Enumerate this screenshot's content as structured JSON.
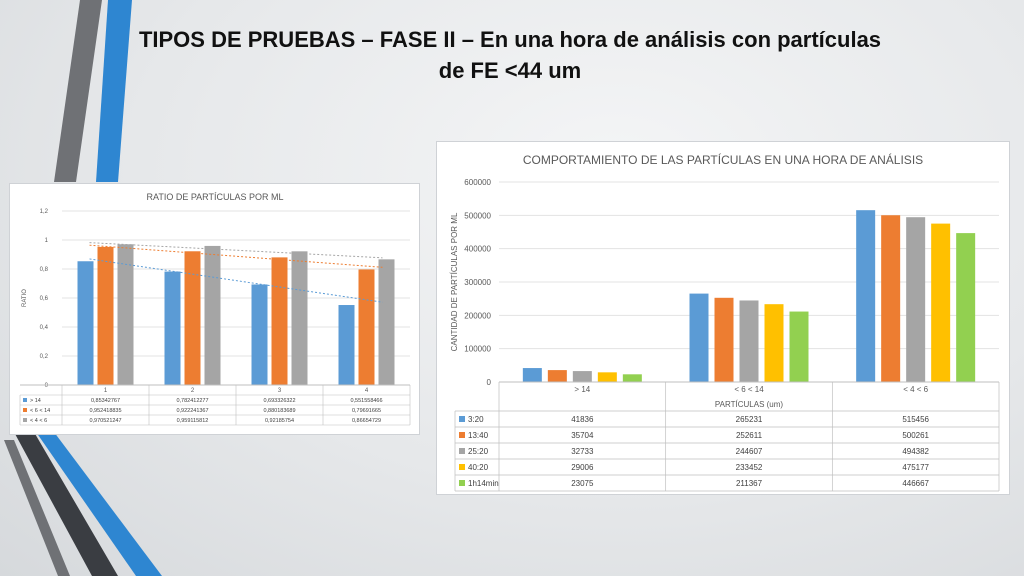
{
  "slide": {
    "title_line1": "TIPOS DE PRUEBAS – FASE II – En una hora de análisis con partículas",
    "title_line2": "de FE <44 um"
  },
  "colors": {
    "blue": "#5b9bd5",
    "orange": "#ed7d31",
    "gray": "#a5a5a5",
    "yellow": "#ffc000",
    "green": "#92d050"
  },
  "chart_data": [
    {
      "type": "bar",
      "title": "RATIO DE PARTÍCULAS POR ML",
      "xlabel": "",
      "ylabel": "RATIO",
      "ylim": [
        0,
        1.2
      ],
      "yticks": [
        "0",
        "0,2",
        "0,4",
        "0,6",
        "0,8",
        "1",
        "1,2"
      ],
      "categories": [
        "1",
        "2",
        "3",
        "4"
      ],
      "series": [
        {
          "name": "> 14",
          "values": [
            0.85342767,
            0.782412277,
            0.693326322,
            0.551558466
          ],
          "labels": [
            "0,85342767",
            "0,782412277",
            "0,693326322",
            "0,551558466"
          ]
        },
        {
          "name": "< 6 < 14",
          "values": [
            0.952418835,
            0.922241367,
            0.880183689,
            0.79691665
          ],
          "labels": [
            "0,952418835",
            "0,922241367",
            "0,880183689",
            "0,79691665"
          ]
        },
        {
          "name": "< 4 < 6",
          "values": [
            0.970521247,
            0.959115812,
            0.92185754,
            0.86654729
          ],
          "labels": [
            "0,970521247",
            "0,959115812",
            "0,92185754",
            "0,86654729"
          ]
        }
      ],
      "trendlines": true,
      "legend": "data-table"
    },
    {
      "type": "bar",
      "title": "COMPORTAMIENTO DE LAS PARTÍCULAS EN UNA HORA DE ANÁLISIS",
      "xlabel": "PARTÍCULAS (um)",
      "ylabel": "CANTIDAD DE PARTÍCULAS POR ML",
      "ylim": [
        0,
        600000
      ],
      "yticks": [
        "0",
        "100000",
        "200000",
        "300000",
        "400000",
        "500000",
        "600000"
      ],
      "categories": [
        "> 14",
        "< 6 < 14",
        "< 4 < 6"
      ],
      "series": [
        {
          "name": "3:20",
          "values": [
            41836,
            265231,
            515456
          ]
        },
        {
          "name": "13:40",
          "values": [
            35704,
            252611,
            500261
          ]
        },
        {
          "name": "25:20",
          "values": [
            32733,
            244607,
            494382
          ]
        },
        {
          "name": "40:20",
          "values": [
            29006,
            233452,
            475177
          ]
        },
        {
          "name": "1h14min",
          "values": [
            23075,
            211367,
            446667
          ]
        }
      ],
      "legend": "data-table"
    }
  ]
}
